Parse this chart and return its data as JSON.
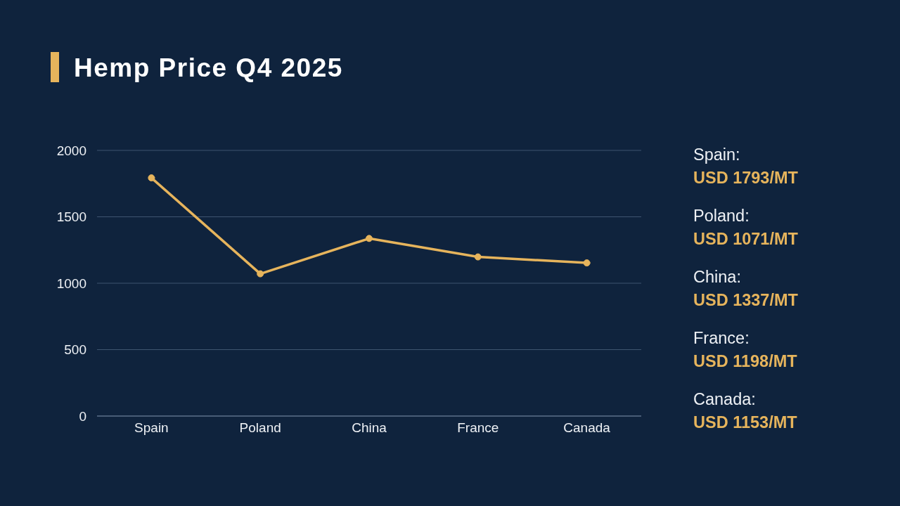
{
  "chart_data": [
    {
      "type": "line",
      "title": "Hemp Price Q4 2025",
      "categories": [
        "Spain",
        "Poland",
        "China",
        "France",
        "Canada"
      ],
      "values": [
        1793,
        1071,
        1337,
        1198,
        1153
      ],
      "color": "#e6b45c",
      "ylim": [
        0,
        2000
      ],
      "yticks": [
        0,
        500,
        1000,
        1500,
        2000
      ],
      "grid": "y",
      "marker": "circle",
      "line_style": "solid"
    },
    {
      "type": "other",
      "annotations": [
        "Spain:",
        "USD 1793/MT",
        "Poland:",
        "USD 1071/MT",
        "China:",
        "USD 1337/MT",
        "France:",
        "USD 1198/MT",
        "Canada:",
        "USD 1153/MT"
      ]
    }
  ]
}
